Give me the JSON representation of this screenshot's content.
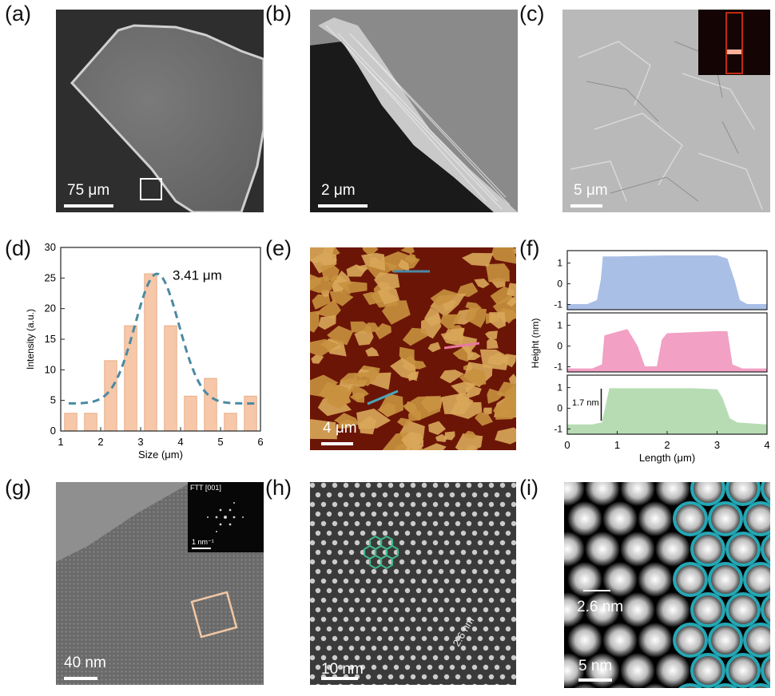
{
  "labels": {
    "a": "(a)",
    "b": "(b)",
    "c": "(c)",
    "d": "(d)",
    "e": "(e)",
    "f": "(f)",
    "g": "(g)",
    "h": "(h)",
    "i": "(i)"
  },
  "scalebars": {
    "a": "75 μm",
    "b": "2 μm",
    "c": "5 μm",
    "e": "4 μm",
    "g": "40 nm",
    "h": "10 nm",
    "i": "5 nm"
  },
  "insets": {
    "g_title": "FTT [001]",
    "g_scale": "1 nm⁻¹"
  },
  "annotations": {
    "h_spacing": "2.6 nm",
    "i_spacing": "2.6 nm",
    "f_step": "1.7 nm",
    "d_peak": "3.41 μm"
  },
  "chart_data": [
    {
      "panel": "d",
      "type": "bar",
      "xlabel": "Size (μm)",
      "ylabel": "Intensity (a.u.)",
      "xlim": [
        1,
        6
      ],
      "ylim": [
        0,
        30
      ],
      "xticks": [
        1,
        2,
        3,
        4,
        5,
        6
      ],
      "yticks": [
        0,
        5,
        10,
        15,
        20,
        25,
        30
      ],
      "x": [
        1.25,
        1.75,
        2.25,
        2.75,
        3.25,
        3.75,
        4.25,
        4.75,
        5.25,
        5.75
      ],
      "values": [
        2.9,
        2.9,
        11.5,
        17.2,
        25.7,
        17.2,
        5.7,
        8.6,
        2.9,
        5.7
      ],
      "fit_peak": 3.41,
      "fit_color": "#4a8aa2",
      "bar_color": "#f6c7a8"
    },
    {
      "panel": "f",
      "type": "area",
      "xlabel": "Length (μm)",
      "ylabel": "Height  (nm)",
      "xlim": [
        0,
        4
      ],
      "xticks": [
        0,
        1,
        2,
        3,
        4
      ],
      "yticks": [
        1,
        0,
        -1
      ],
      "series": [
        {
          "color": "#a9bfe6",
          "x": [
            0,
            0.4,
            0.6,
            0.68,
            0.72,
            1.0,
            2.0,
            3.0,
            3.2,
            3.35,
            3.45,
            3.6,
            4.0
          ],
          "y": [
            -1.0,
            -1.0,
            -0.8,
            0.2,
            1.3,
            1.3,
            1.35,
            1.35,
            1.2,
            0.1,
            -0.8,
            -1.0,
            -1.0
          ]
        },
        {
          "color": "#f2a0c4",
          "x": [
            0,
            0.5,
            0.7,
            0.75,
            1.2,
            1.4,
            1.55,
            1.8,
            1.9,
            2.0,
            3.0,
            3.2,
            3.3,
            3.5,
            4.0
          ],
          "y": [
            -1.1,
            -1.1,
            -0.9,
            0.5,
            0.8,
            0.0,
            -1.0,
            -1.0,
            0.3,
            0.6,
            0.7,
            0.7,
            -0.9,
            -1.1,
            -1.1
          ]
        },
        {
          "color": "#b7dcb4",
          "x": [
            0,
            0.5,
            0.7,
            0.78,
            0.85,
            1.5,
            2.5,
            3.0,
            3.1,
            3.25,
            3.4,
            4.0
          ],
          "y": [
            -0.8,
            -0.8,
            -0.7,
            0.2,
            0.95,
            0.95,
            0.95,
            0.9,
            0.5,
            -0.5,
            -0.7,
            -0.8
          ]
        }
      ]
    }
  ]
}
